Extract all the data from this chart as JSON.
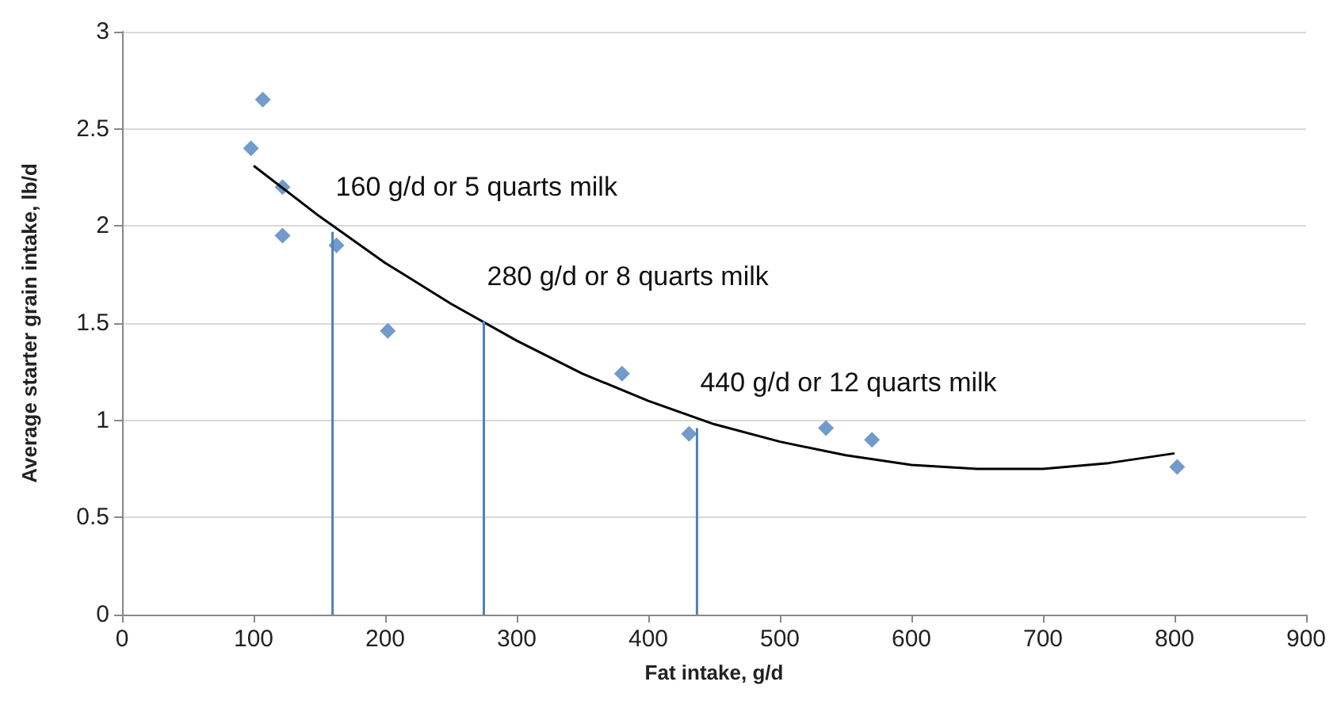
{
  "chart_data": {
    "type": "scatter",
    "xlabel": "Fat intake, g/d",
    "ylabel": "Average starter grain intake, lb/d",
    "xlim": [
      0,
      900
    ],
    "xticks": [
      0,
      100,
      200,
      300,
      400,
      500,
      600,
      700,
      800,
      900
    ],
    "ylim": [
      0,
      3
    ],
    "yticks": [
      0,
      0.5,
      1,
      1.5,
      2,
      2.5,
      3
    ],
    "grid": "y",
    "series": [
      {
        "color": "#4f81bd",
        "marker": "diamond",
        "x": [
          98,
          107,
          122,
          122,
          163,
          202,
          380,
          431,
          535,
          570,
          802
        ],
        "values": [
          2.4,
          2.65,
          2.2,
          1.95,
          1.9,
          1.46,
          1.24,
          0.93,
          0.96,
          0.9,
          0.76
        ]
      },
      {
        "type": "line",
        "color": "#000000",
        "marker": "none",
        "x": [
          100,
          150,
          200,
          250,
          300,
          350,
          400,
          450,
          500,
          550,
          600,
          650,
          700,
          750,
          800
        ],
        "values": [
          2.31,
          2.05,
          1.81,
          1.6,
          1.41,
          1.24,
          1.1,
          0.98,
          0.89,
          0.82,
          0.77,
          0.75,
          0.75,
          0.78,
          0.83
        ]
      },
      {
        "type": "line",
        "color": "#4f81bd",
        "marker": "none",
        "x": [
          160,
          160
        ],
        "values": [
          0,
          1.97
        ]
      },
      {
        "type": "line",
        "color": "#4f81bd",
        "marker": "none",
        "x": [
          275,
          275
        ],
        "values": [
          0,
          1.51
        ]
      },
      {
        "type": "line",
        "color": "#4f81bd",
        "marker": "none",
        "x": [
          437,
          437
        ],
        "values": [
          0,
          0.96
        ]
      }
    ],
    "annotations": [
      "160 g/d or 5 quarts milk",
      "280 g/d or 8 quarts milk",
      "440 g/d or 12 quarts milk"
    ]
  }
}
